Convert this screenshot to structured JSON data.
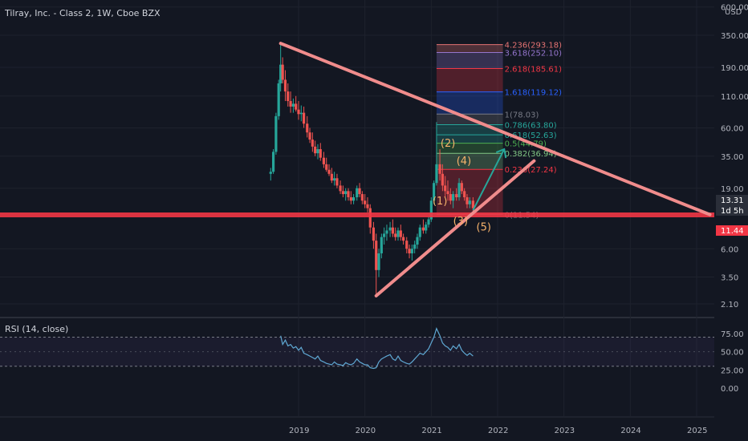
{
  "chart_data": {
    "type": "candlestick",
    "title": "Tilray, Inc. - Class 2, 1W, Cboe BZX",
    "currency_label": "USD",
    "price_axis": {
      "scale": "log",
      "ticks": [
        "600.00",
        "350.00",
        "190.00",
        "110.00",
        "60.00",
        "35.00",
        "19.00",
        "13.31",
        "11.44",
        "6.00",
        "3.50",
        "2.10"
      ]
    },
    "time_axis": {
      "ticks": [
        "2019",
        "2020",
        "2021",
        "2022",
        "2023",
        "2024",
        "2025"
      ]
    },
    "price_badges": [
      {
        "value": "13.31",
        "color": "#2a2e39"
      },
      {
        "value": "1d 5h",
        "color": "#2a2e39"
      },
      {
        "value": "11.44",
        "color": "#f23645"
      }
    ],
    "candles": [
      {
        "x": 2018.58,
        "o": 25,
        "h": 28,
        "l": 22,
        "c": 26
      },
      {
        "x": 2018.62,
        "o": 26,
        "h": 40,
        "l": 25,
        "c": 38
      },
      {
        "x": 2018.66,
        "o": 38,
        "h": 80,
        "l": 36,
        "c": 75
      },
      {
        "x": 2018.7,
        "o": 75,
        "h": 150,
        "l": 70,
        "c": 140
      },
      {
        "x": 2018.73,
        "o": 140,
        "h": 300,
        "l": 120,
        "c": 200
      },
      {
        "x": 2018.76,
        "o": 200,
        "h": 230,
        "l": 140,
        "c": 150
      },
      {
        "x": 2018.8,
        "o": 150,
        "h": 180,
        "l": 100,
        "c": 120
      },
      {
        "x": 2018.84,
        "o": 120,
        "h": 140,
        "l": 90,
        "c": 100
      },
      {
        "x": 2018.88,
        "o": 100,
        "h": 120,
        "l": 80,
        "c": 90
      },
      {
        "x": 2018.92,
        "o": 90,
        "h": 105,
        "l": 80,
        "c": 95
      },
      {
        "x": 2018.96,
        "o": 95,
        "h": 110,
        "l": 82,
        "c": 85
      },
      {
        "x": 2019.0,
        "o": 85,
        "h": 100,
        "l": 70,
        "c": 78
      },
      {
        "x": 2019.04,
        "o": 78,
        "h": 92,
        "l": 68,
        "c": 80
      },
      {
        "x": 2019.08,
        "o": 80,
        "h": 90,
        "l": 60,
        "c": 65
      },
      {
        "x": 2019.13,
        "o": 65,
        "h": 75,
        "l": 50,
        "c": 55
      },
      {
        "x": 2019.17,
        "o": 55,
        "h": 60,
        "l": 45,
        "c": 48
      },
      {
        "x": 2019.21,
        "o": 48,
        "h": 55,
        "l": 38,
        "c": 42
      },
      {
        "x": 2019.25,
        "o": 42,
        "h": 47,
        "l": 35,
        "c": 37
      },
      {
        "x": 2019.29,
        "o": 37,
        "h": 44,
        "l": 33,
        "c": 40
      },
      {
        "x": 2019.33,
        "o": 40,
        "h": 45,
        "l": 32,
        "c": 34
      },
      {
        "x": 2019.38,
        "o": 34,
        "h": 38,
        "l": 28,
        "c": 30
      },
      {
        "x": 2019.42,
        "o": 30,
        "h": 34,
        "l": 26,
        "c": 27
      },
      {
        "x": 2019.46,
        "o": 27,
        "h": 30,
        "l": 24,
        "c": 25
      },
      {
        "x": 2019.5,
        "o": 25,
        "h": 28,
        "l": 21,
        "c": 22
      },
      {
        "x": 2019.54,
        "o": 22,
        "h": 26,
        "l": 20,
        "c": 23
      },
      {
        "x": 2019.58,
        "o": 23,
        "h": 25,
        "l": 19,
        "c": 20
      },
      {
        "x": 2019.63,
        "o": 20,
        "h": 22,
        "l": 17,
        "c": 18
      },
      {
        "x": 2019.67,
        "o": 18,
        "h": 20,
        "l": 16,
        "c": 17
      },
      {
        "x": 2019.71,
        "o": 17,
        "h": 19,
        "l": 15,
        "c": 18
      },
      {
        "x": 2019.75,
        "o": 18,
        "h": 19,
        "l": 15,
        "c": 16
      },
      {
        "x": 2019.79,
        "o": 16,
        "h": 18,
        "l": 14,
        "c": 15
      },
      {
        "x": 2019.83,
        "o": 15,
        "h": 17,
        "l": 14,
        "c": 16
      },
      {
        "x": 2019.88,
        "o": 16,
        "h": 20,
        "l": 15,
        "c": 19
      },
      {
        "x": 2019.92,
        "o": 19,
        "h": 21,
        "l": 16,
        "c": 17
      },
      {
        "x": 2019.96,
        "o": 17,
        "h": 18,
        "l": 14,
        "c": 15
      },
      {
        "x": 2020.0,
        "o": 15,
        "h": 17,
        "l": 13,
        "c": 14
      },
      {
        "x": 2020.04,
        "o": 14,
        "h": 16,
        "l": 12,
        "c": 13
      },
      {
        "x": 2020.08,
        "o": 13,
        "h": 14,
        "l": 8,
        "c": 9
      },
      {
        "x": 2020.13,
        "o": 9,
        "h": 10,
        "l": 6,
        "c": 7
      },
      {
        "x": 2020.17,
        "o": 7,
        "h": 8,
        "l": 2.5,
        "c": 4
      },
      {
        "x": 2020.21,
        "o": 4,
        "h": 6,
        "l": 3.5,
        "c": 5.5
      },
      {
        "x": 2020.25,
        "o": 5.5,
        "h": 8,
        "l": 5,
        "c": 7.5
      },
      {
        "x": 2020.29,
        "o": 7.5,
        "h": 9,
        "l": 6.5,
        "c": 8
      },
      {
        "x": 2020.33,
        "o": 8,
        "h": 9.5,
        "l": 7,
        "c": 8.5
      },
      {
        "x": 2020.38,
        "o": 8.5,
        "h": 10,
        "l": 7.5,
        "c": 9
      },
      {
        "x": 2020.42,
        "o": 9,
        "h": 10.5,
        "l": 7.5,
        "c": 8
      },
      {
        "x": 2020.46,
        "o": 8,
        "h": 9,
        "l": 7,
        "c": 7.5
      },
      {
        "x": 2020.5,
        "o": 7.5,
        "h": 9,
        "l": 7,
        "c": 8.5
      },
      {
        "x": 2020.54,
        "o": 8.5,
        "h": 9.5,
        "l": 7,
        "c": 7.5
      },
      {
        "x": 2020.58,
        "o": 7.5,
        "h": 8,
        "l": 6.5,
        "c": 7
      },
      {
        "x": 2020.63,
        "o": 7,
        "h": 7.5,
        "l": 5.5,
        "c": 6
      },
      {
        "x": 2020.67,
        "o": 6,
        "h": 6.5,
        "l": 5,
        "c": 5.5
      },
      {
        "x": 2020.71,
        "o": 5.5,
        "h": 6.5,
        "l": 4.8,
        "c": 6
      },
      {
        "x": 2020.75,
        "o": 6,
        "h": 7,
        "l": 5.5,
        "c": 6.5
      },
      {
        "x": 2020.79,
        "o": 6.5,
        "h": 8,
        "l": 6,
        "c": 7.5
      },
      {
        "x": 2020.83,
        "o": 7.5,
        "h": 9.5,
        "l": 7,
        "c": 9
      },
      {
        "x": 2020.88,
        "o": 9,
        "h": 10.5,
        "l": 8,
        "c": 8.5
      },
      {
        "x": 2020.92,
        "o": 8.5,
        "h": 10,
        "l": 8,
        "c": 9.5
      },
      {
        "x": 2020.96,
        "o": 9.5,
        "h": 11,
        "l": 9,
        "c": 10.5
      },
      {
        "x": 2021.0,
        "o": 10.5,
        "h": 16,
        "l": 10,
        "c": 15
      },
      {
        "x": 2021.04,
        "o": 15,
        "h": 22,
        "l": 14,
        "c": 21
      },
      {
        "x": 2021.08,
        "o": 21,
        "h": 67,
        "l": 20,
        "c": 30
      },
      {
        "x": 2021.13,
        "o": 30,
        "h": 40,
        "l": 22,
        "c": 25
      },
      {
        "x": 2021.17,
        "o": 25,
        "h": 30,
        "l": 18,
        "c": 20
      },
      {
        "x": 2021.21,
        "o": 20,
        "h": 24,
        "l": 16,
        "c": 18
      },
      {
        "x": 2021.25,
        "o": 18,
        "h": 22,
        "l": 15,
        "c": 17
      },
      {
        "x": 2021.29,
        "o": 17,
        "h": 19,
        "l": 14,
        "c": 15
      },
      {
        "x": 2021.33,
        "o": 15,
        "h": 18,
        "l": 13,
        "c": 17
      },
      {
        "x": 2021.38,
        "o": 17,
        "h": 19,
        "l": 15,
        "c": 16
      },
      {
        "x": 2021.42,
        "o": 16,
        "h": 23,
        "l": 15,
        "c": 21
      },
      {
        "x": 2021.46,
        "o": 21,
        "h": 22,
        "l": 17,
        "c": 18
      },
      {
        "x": 2021.5,
        "o": 18,
        "h": 19,
        "l": 15,
        "c": 16
      },
      {
        "x": 2021.54,
        "o": 16,
        "h": 17,
        "l": 13,
        "c": 14
      },
      {
        "x": 2021.58,
        "o": 14,
        "h": 16,
        "l": 13,
        "c": 15
      },
      {
        "x": 2021.63,
        "o": 15,
        "h": 16,
        "l": 12,
        "c": 13
      }
    ],
    "support_line": {
      "y": 11.44,
      "color": "#f23645"
    },
    "trendlines": [
      {
        "name": "descending-resistance",
        "from": [
          2018.73,
          300
        ],
        "to": [
          2025.2,
          11.5
        ],
        "color": "#f08c8c"
      },
      {
        "name": "ascending-support",
        "from": [
          2020.17,
          2.45
        ],
        "to": [
          2022.55,
          32
        ],
        "color": "#f08c8c"
      }
    ],
    "projection_arrow": {
      "points": [
        [
          2021.63,
          12.5
        ],
        [
          2022.1,
          40
        ]
      ],
      "color": "#26a69a"
    },
    "fib_box": {
      "x_start": 2021.08,
      "x_end": 2022.08,
      "levels": [
        {
          "label": "4.236(293.18)",
          "y": 293.18,
          "color": "#e57373"
        },
        {
          "label": "3.618(252.10)",
          "y": 252.1,
          "color": "#9575cd"
        },
        {
          "label": "2.618(185.61)",
          "y": 185.61,
          "color": "#f23645"
        },
        {
          "label": "1.618(119.12)",
          "y": 119.12,
          "color": "#2962ff"
        },
        {
          "label": "1(78.03)",
          "y": 78.03,
          "color": "#787b86"
        },
        {
          "label": "0.786(63.80)",
          "y": 63.8,
          "color": "#26a69a"
        },
        {
          "label": "0.618(52.63)",
          "y": 52.63,
          "color": "#26a69a"
        },
        {
          "label": "0.5(44.79)",
          "y": 44.79,
          "color": "#4caf50"
        },
        {
          "label": "0.382(36.94)",
          "y": 36.94,
          "color": "#81c784"
        },
        {
          "label": "0.236(27.24)",
          "y": 27.24,
          "color": "#f23645"
        },
        {
          "label": "0(11.54)",
          "y": 11.54,
          "color": "#787b86"
        }
      ]
    },
    "wave_labels": [
      {
        "text": "(1)",
        "x": 2021.02,
        "y": 14
      },
      {
        "text": "(2)",
        "x": 2021.14,
        "y": 42
      },
      {
        "text": "(3)",
        "x": 2021.33,
        "y": 9.5
      },
      {
        "text": "(4)",
        "x": 2021.38,
        "y": 30
      },
      {
        "text": "(5)",
        "x": 2021.68,
        "y": 8.5
      }
    ],
    "rsi": {
      "title": "RSI (14, close)",
      "ticks": [
        "75.00",
        "50.00",
        "25.00",
        "0.00"
      ],
      "band": [
        30,
        70
      ],
      "color": "#5fa8d3",
      "values": [
        [
          2018.73,
          72
        ],
        [
          2018.76,
          60
        ],
        [
          2018.8,
          66
        ],
        [
          2018.84,
          58
        ],
        [
          2018.88,
          60
        ],
        [
          2018.92,
          55
        ],
        [
          2018.96,
          57
        ],
        [
          2019.0,
          52
        ],
        [
          2019.04,
          56
        ],
        [
          2019.08,
          48
        ],
        [
          2019.13,
          46
        ],
        [
          2019.17,
          44
        ],
        [
          2019.21,
          42
        ],
        [
          2019.25,
          40
        ],
        [
          2019.29,
          44
        ],
        [
          2019.33,
          38
        ],
        [
          2019.38,
          36
        ],
        [
          2019.42,
          34
        ],
        [
          2019.46,
          33
        ],
        [
          2019.5,
          32
        ],
        [
          2019.54,
          36
        ],
        [
          2019.58,
          33
        ],
        [
          2019.63,
          32
        ],
        [
          2019.67,
          31
        ],
        [
          2019.71,
          35
        ],
        [
          2019.75,
          33
        ],
        [
          2019.79,
          32
        ],
        [
          2019.83,
          34
        ],
        [
          2019.88,
          40
        ],
        [
          2019.92,
          36
        ],
        [
          2019.96,
          34
        ],
        [
          2020.0,
          32
        ],
        [
          2020.04,
          32
        ],
        [
          2020.08,
          28
        ],
        [
          2020.13,
          27
        ],
        [
          2020.17,
          28
        ],
        [
          2020.21,
          36
        ],
        [
          2020.25,
          40
        ],
        [
          2020.29,
          42
        ],
        [
          2020.33,
          44
        ],
        [
          2020.38,
          46
        ],
        [
          2020.42,
          40
        ],
        [
          2020.46,
          38
        ],
        [
          2020.5,
          44
        ],
        [
          2020.54,
          38
        ],
        [
          2020.58,
          36
        ],
        [
          2020.63,
          34
        ],
        [
          2020.67,
          33
        ],
        [
          2020.71,
          36
        ],
        [
          2020.75,
          40
        ],
        [
          2020.79,
          44
        ],
        [
          2020.83,
          48
        ],
        [
          2020.88,
          46
        ],
        [
          2020.92,
          50
        ],
        [
          2020.96,
          54
        ],
        [
          2021.0,
          62
        ],
        [
          2021.04,
          70
        ],
        [
          2021.08,
          82
        ],
        [
          2021.13,
          72
        ],
        [
          2021.17,
          62
        ],
        [
          2021.21,
          58
        ],
        [
          2021.25,
          56
        ],
        [
          2021.29,
          52
        ],
        [
          2021.33,
          58
        ],
        [
          2021.38,
          54
        ],
        [
          2021.42,
          60
        ],
        [
          2021.46,
          52
        ],
        [
          2021.5,
          48
        ],
        [
          2021.54,
          45
        ],
        [
          2021.58,
          48
        ],
        [
          2021.63,
          44
        ]
      ]
    }
  }
}
